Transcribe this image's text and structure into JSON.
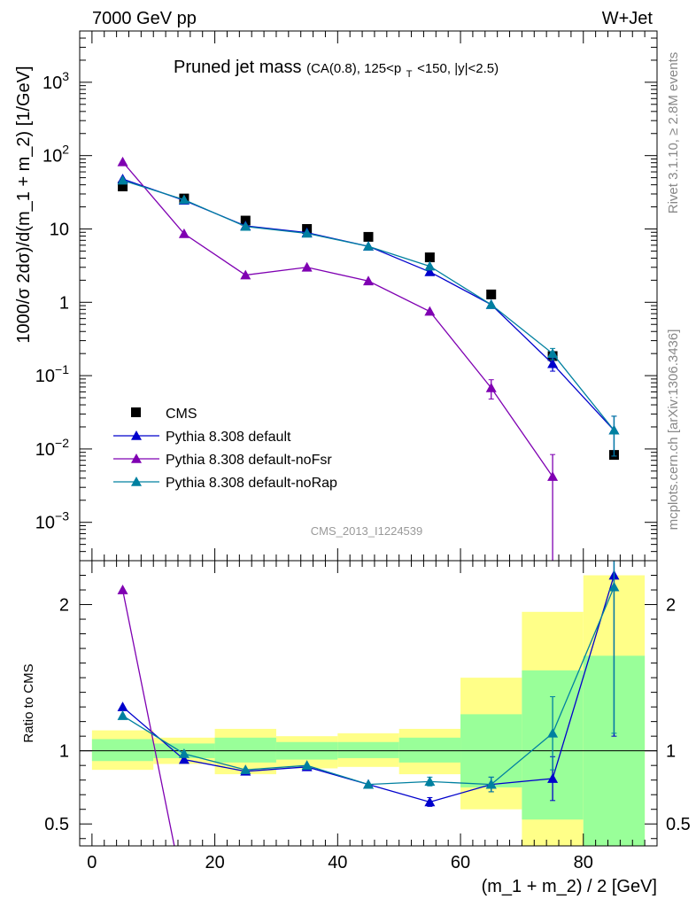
{
  "header": {
    "left": "7000 GeV pp",
    "right": "W+Jet"
  },
  "title": {
    "main": "Pruned jet mass",
    "detail_pre": "(CA(0.8), 125<p",
    "detail_sub": "T",
    "detail_post": "<150, |y|<2.5)"
  },
  "side_labels": {
    "rivet": "Rivet 3.1.10, ≥ 2.8M events",
    "mcplots": "mcplots.cern.ch [arXiv:1306.3436]"
  },
  "analysis_id": "CMS_2013_I1224539",
  "chart_data": [
    {
      "type": "scatter",
      "panel": "main",
      "ylabel": "1000/σ 2dσ)/d(m_1 + m_2) [1/GeV]",
      "yscale": "log",
      "ylim": [
        0.0003,
        5000
      ],
      "xlim": [
        -2,
        92
      ],
      "y_ticks": [
        {
          "value": 0.001,
          "base": "10",
          "exp": "−3"
        },
        {
          "value": 0.01,
          "base": "10",
          "exp": "−2"
        },
        {
          "value": 0.1,
          "base": "10",
          "exp": "−1"
        },
        {
          "value": 1,
          "base": "1",
          "exp": ""
        },
        {
          "value": 10,
          "base": "10",
          "exp": ""
        },
        {
          "value": 100,
          "base": "10",
          "exp": "2"
        },
        {
          "value": 1000,
          "base": "10",
          "exp": "3"
        }
      ],
      "legend_position": "bottom-left",
      "series": [
        {
          "name": "CMS",
          "color": "#000000",
          "marker": "square",
          "line": false,
          "x": [
            5,
            15,
            25,
            35,
            45,
            55,
            65,
            75,
            85
          ],
          "y": [
            38,
            26,
            13,
            10,
            7.8,
            4.1,
            1.28,
            0.185,
            0.0083
          ],
          "err": [
            0,
            0,
            0,
            0,
            0,
            0,
            0,
            0,
            0
          ]
        },
        {
          "name": "Pythia 8.308 default",
          "color": "#0000cc",
          "marker": "triangle",
          "line": true,
          "x": [
            5,
            15,
            25,
            35,
            45,
            55,
            65,
            75,
            85
          ],
          "y": [
            48,
            24.5,
            11,
            8.9,
            5.8,
            2.6,
            0.93,
            0.145,
            0.018
          ],
          "err": [
            0,
            0,
            0,
            0,
            0,
            0,
            0,
            0.03,
            0.01
          ]
        },
        {
          "name": "Pythia 8.308 default-noFsr",
          "color": "#7f00b2",
          "marker": "triangle",
          "line": true,
          "x": [
            5,
            15,
            25,
            35,
            45,
            55,
            65,
            75,
            85
          ],
          "y": [
            82,
            8.6,
            2.35,
            3.0,
            1.95,
            0.75,
            0.068,
            0.0042,
            null
          ],
          "err": [
            0,
            0,
            0,
            0,
            0,
            0,
            0.02,
            0.0042,
            0
          ]
        },
        {
          "name": "Pythia 8.308 default-noRap",
          "color": "#0080a0",
          "marker": "triangle",
          "line": true,
          "x": [
            5,
            15,
            25,
            35,
            45,
            55,
            65,
            75,
            85
          ],
          "y": [
            46,
            25,
            10.8,
            8.7,
            5.8,
            3.1,
            0.93,
            0.2,
            0.018
          ],
          "err": [
            0,
            0,
            0,
            0,
            0,
            0,
            0,
            0.035,
            0.01
          ]
        }
      ]
    },
    {
      "type": "scatter",
      "panel": "ratio",
      "ylabel": "Ratio to CMS",
      "xlabel": "(m_1 + m_2) / 2 [GeV]",
      "ylim": [
        0.35,
        2.3
      ],
      "xlim": [
        -2,
        92
      ],
      "x_ticks": [
        0,
        20,
        40,
        60,
        80
      ],
      "y_ticks": [
        0.5,
        1,
        2
      ],
      "reference_line": 1,
      "bands": [
        {
          "x0": 0,
          "x1": 10,
          "yellow": [
            0.87,
            1.14
          ],
          "green": [
            0.93,
            1.08
          ]
        },
        {
          "x0": 10,
          "x1": 20,
          "yellow": [
            0.91,
            1.09
          ],
          "green": [
            0.95,
            1.05
          ]
        },
        {
          "x0": 20,
          "x1": 30,
          "yellow": [
            0.84,
            1.15
          ],
          "green": [
            0.92,
            1.09
          ]
        },
        {
          "x0": 30,
          "x1": 40,
          "yellow": [
            0.88,
            1.1
          ],
          "green": [
            0.94,
            1.06
          ]
        },
        {
          "x0": 40,
          "x1": 50,
          "yellow": [
            0.89,
            1.12
          ],
          "green": [
            0.95,
            1.06
          ]
        },
        {
          "x0": 50,
          "x1": 60,
          "yellow": [
            0.84,
            1.15
          ],
          "green": [
            0.92,
            1.09
          ]
        },
        {
          "x0": 60,
          "x1": 70,
          "yellow": [
            0.6,
            1.5
          ],
          "green": [
            0.75,
            1.25
          ]
        },
        {
          "x0": 70,
          "x1": 80,
          "yellow": [
            0.35,
            1.95
          ],
          "green": [
            0.53,
            1.55
          ]
        },
        {
          "x0": 80,
          "x1": 90,
          "yellow": [
            0.35,
            2.2
          ],
          "green": [
            0.35,
            1.65
          ]
        }
      ],
      "series": [
        {
          "name": "Pythia 8.308 default",
          "color": "#0000cc",
          "x": [
            5,
            15,
            25,
            35,
            45,
            55,
            65,
            75,
            85
          ],
          "y": [
            1.3,
            0.94,
            0.86,
            0.89,
            0.77,
            0.65,
            0.77,
            0.81,
            2.2
          ],
          "err": [
            0,
            0,
            0,
            0,
            0,
            0.03,
            0.05,
            0.15,
            1.1
          ]
        },
        {
          "name": "Pythia 8.308 default-noFsr",
          "color": "#7f00b2",
          "x": [
            5,
            13.5
          ],
          "y": [
            2.1,
            0.33
          ],
          "err": [
            0,
            0
          ]
        },
        {
          "name": "Pythia 8.308 default-noRap",
          "color": "#0080a0",
          "x": [
            5,
            15,
            25,
            35,
            45,
            55,
            65,
            75,
            85
          ],
          "y": [
            1.24,
            0.98,
            0.87,
            0.9,
            0.77,
            0.79,
            0.77,
            1.12,
            2.12
          ],
          "err": [
            0,
            0,
            0,
            0,
            0,
            0.03,
            0.05,
            0.25,
            1.0
          ]
        }
      ]
    }
  ]
}
